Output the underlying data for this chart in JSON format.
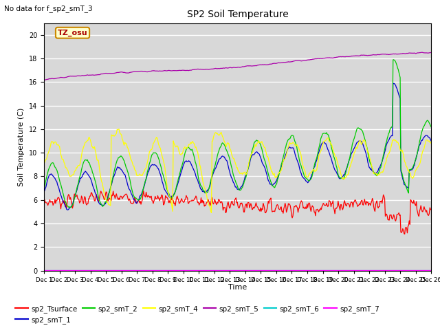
{
  "title": "SP2 Soil Temperature",
  "ylabel": "Soil Temperature (C)",
  "xlabel": "Time",
  "note": "No data for f_sp2_smT_3",
  "tz_label": "TZ_osu",
  "ylim": [
    0,
    21
  ],
  "yticks": [
    0,
    2,
    4,
    6,
    8,
    10,
    12,
    14,
    16,
    18,
    20
  ],
  "bg_color": "#d8d8d8",
  "fig_color": "#ffffff",
  "series_colors": {
    "sp2_Tsurface": "#ff0000",
    "sp2_smT_1": "#0000cc",
    "sp2_smT_2": "#00cc00",
    "sp2_smT_4": "#ffff00",
    "sp2_smT_5": "#aa00aa",
    "sp2_smT_6": "#00cccc",
    "sp2_smT_7": "#ff00ff"
  },
  "n_points": 600
}
